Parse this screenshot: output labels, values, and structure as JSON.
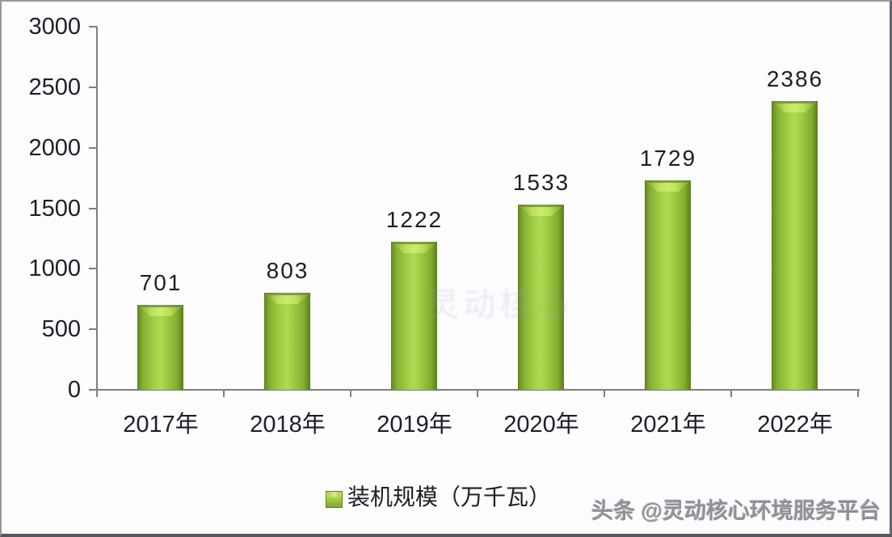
{
  "chart_data": {
    "type": "bar",
    "categories": [
      "2017年",
      "2018年",
      "2019年",
      "2020年",
      "2021年",
      "2022年"
    ],
    "values": [
      701,
      803,
      1222,
      1533,
      1729,
      2386
    ],
    "series_name": "装机规模（万千瓦）",
    "title": "",
    "xlabel": "",
    "ylabel": "",
    "ylim": [
      0,
      3000
    ],
    "yticks": [
      0,
      500,
      1000,
      1500,
      2000,
      2500,
      3000
    ],
    "grid": false,
    "data_labels": true,
    "legend_position": "bottom",
    "bar_color_center": "#aeda52",
    "bar_color_edge": "#688e22",
    "bar_bevel_highlight": "#cdeb6e"
  },
  "legend": {
    "label": "装机规模（万千瓦）"
  },
  "watermark": {
    "center_text": "灵动核心",
    "byline": "头条 @灵动核心环境服务平台"
  },
  "colors": {
    "axis": "#7f7f7f",
    "text": "#1e1e27",
    "byline_gray": "#90909a"
  }
}
